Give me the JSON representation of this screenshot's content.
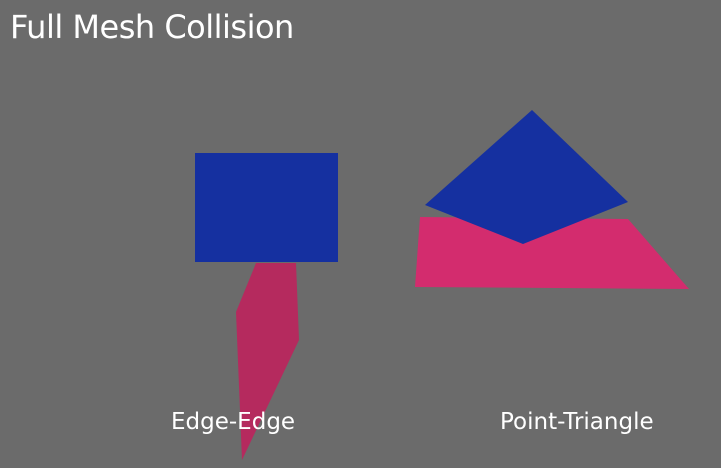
{
  "slide": {
    "title": "Full Mesh Collision"
  },
  "examples": [
    {
      "label": "Edge-Edge"
    },
    {
      "label": "Point-Triangle"
    }
  ],
  "colors": {
    "background": "#6b6b6b",
    "blue": "#1530a0",
    "pink": "#d32c6e",
    "pink_dark": "#b52a5e",
    "text": "#ffffff"
  }
}
